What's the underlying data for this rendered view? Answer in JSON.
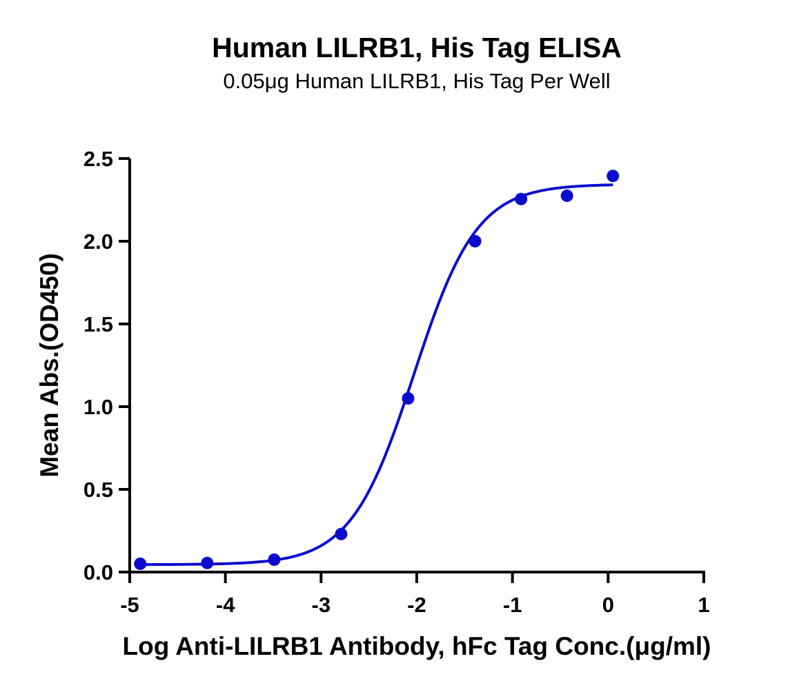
{
  "chart_data": {
    "type": "scatter",
    "title": "Human LILRB1, His Tag ELISA",
    "subtitle": "0.05μg Human LILRB1, His Tag Per Well",
    "xlabel": "Log Anti-LILRB1 Antibody, hFc Tag Conc.(μg/ml)",
    "ylabel": "Mean Abs.(OD450)",
    "xlim": [
      -5,
      1
    ],
    "ylim": [
      0,
      2.5
    ],
    "x_ticks": [
      -5,
      -4,
      -3,
      -2,
      -1,
      0,
      1
    ],
    "x_tick_labels": [
      "-5",
      "-4",
      "-3",
      "-2",
      "-1",
      "0",
      "1"
    ],
    "y_ticks": [
      0,
      0.5,
      1.0,
      1.5,
      2.0,
      2.5
    ],
    "y_tick_labels": [
      "0.0",
      "0.5",
      "1.0",
      "1.5",
      "2.0",
      "2.5"
    ],
    "grid": false,
    "legend": "none",
    "series": [
      {
        "x": [
          -4.89,
          -4.19,
          -3.49,
          -2.79,
          -2.09,
          -1.39,
          -0.91,
          -0.43,
          0.05
        ],
        "values": [
          0.05,
          0.055,
          0.075,
          0.23,
          1.05,
          2.0,
          2.255,
          2.275,
          2.395
        ],
        "color": "#0b0bd0",
        "fit": "4PL"
      }
    ],
    "fit_params": {
      "bottom": 0.045,
      "top": 2.345,
      "log_ec50": -2.03,
      "hill": 1.32
    }
  }
}
